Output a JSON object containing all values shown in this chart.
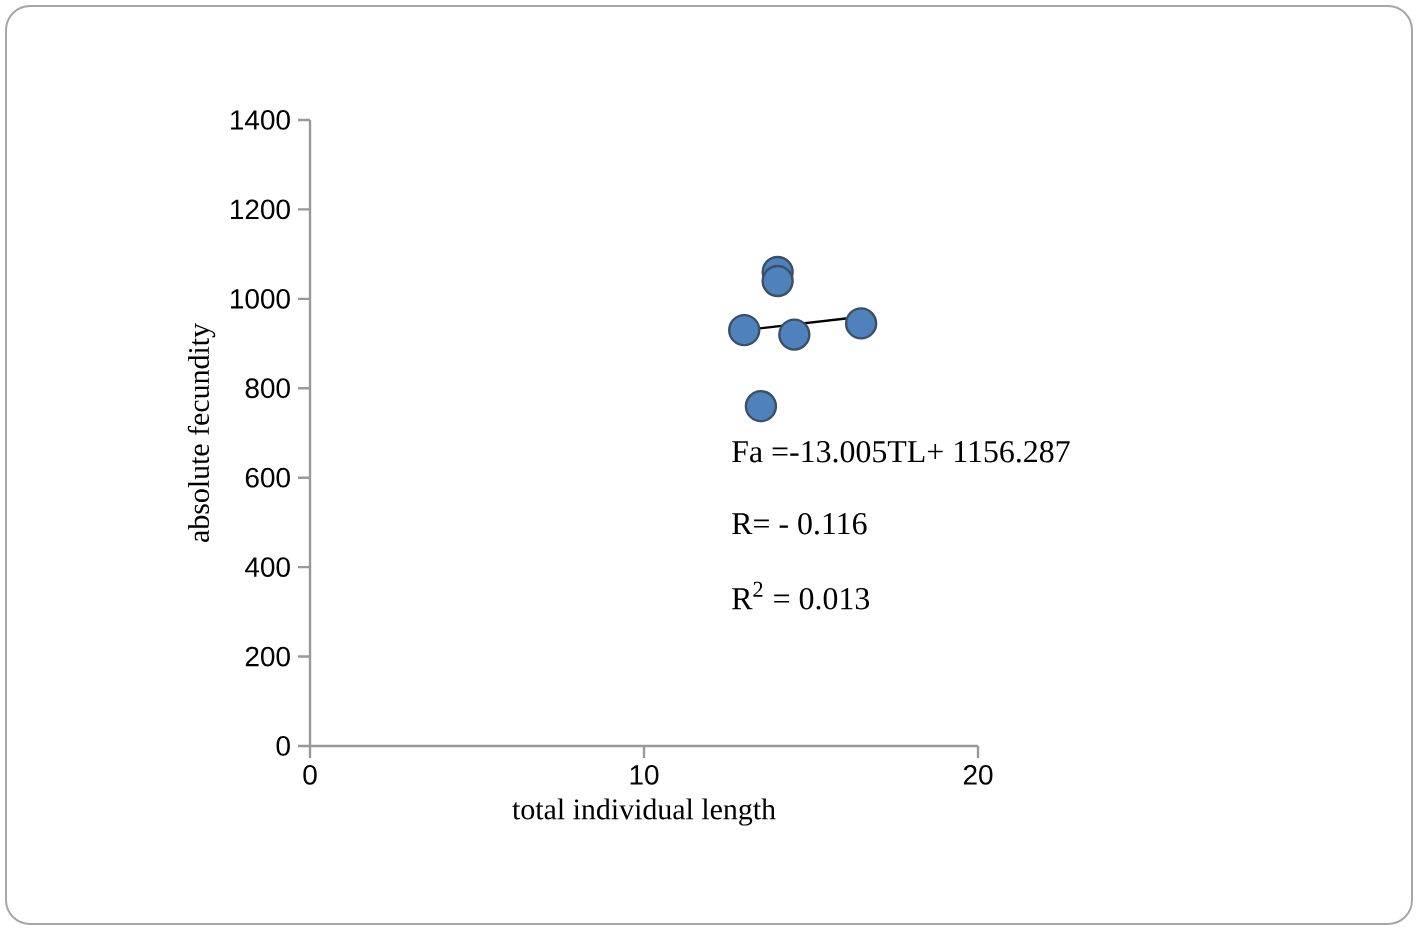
{
  "chart_data": {
    "type": "scatter",
    "xlabel": "total individual length",
    "ylabel": "absolute fecundity",
    "xlim": [
      0,
      20
    ],
    "xticks": [
      0,
      10,
      20
    ],
    "ylim": [
      0,
      1400
    ],
    "yticks": [
      0,
      200,
      400,
      600,
      800,
      1000,
      1200,
      1400
    ],
    "grid": false,
    "series": [
      {
        "marker": "circle",
        "color": "#4f81bd",
        "x": [
          13,
          14.5,
          16.5,
          13.5,
          14,
          14
        ],
        "values": [
          930,
          920,
          945,
          760,
          1060,
          1040
        ]
      },
      {
        "type": "line",
        "marker": "none",
        "color": "#000000",
        "x": [
          13,
          16.5
        ],
        "values": [
          930,
          960
        ]
      }
    ],
    "annotations": [
      "Fa =-13.005TL+ 1156.287",
      "R= - 0.116",
      "R$^{2}$ = 0.013"
    ]
  }
}
